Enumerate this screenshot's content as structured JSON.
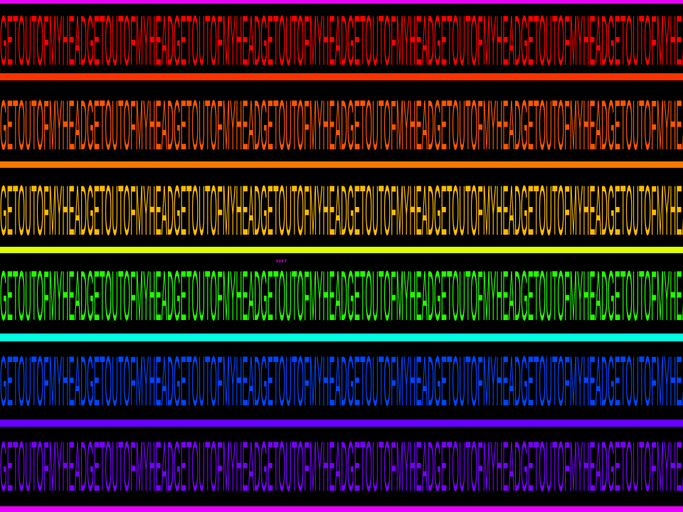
{
  "phrase": "GETOUTOFMYHEAD",
  "tag_text": "YUKT",
  "colors": {
    "background": "#000000",
    "bars": [
      "#e600ff",
      "#ff3300",
      "#ff7700",
      "#ddff00",
      "#00ffdd",
      "#6600ff",
      "#e600ff"
    ],
    "text_rows": [
      "#ff0000",
      "#ff5500",
      "#ffbb00",
      "#22ff00",
      "#0044ff",
      "#7700ff"
    ],
    "tag": "#ff00ff"
  }
}
